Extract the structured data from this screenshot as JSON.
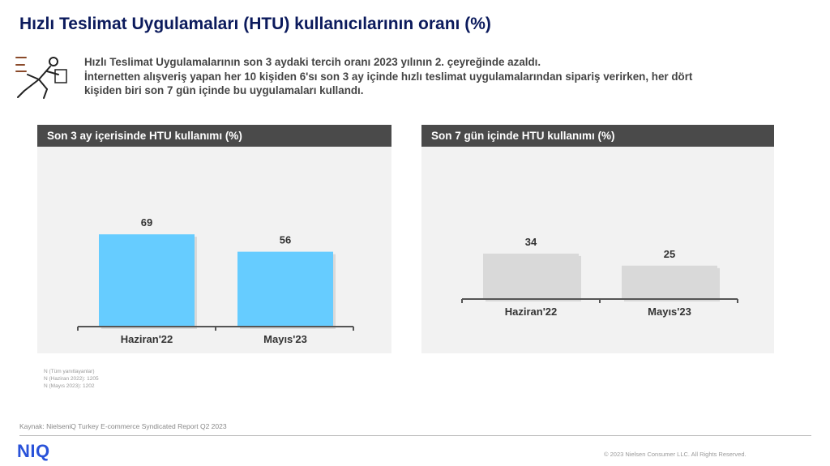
{
  "header": {
    "title": "Hızlı Teslimat Uygulamaları (HTU) kullanıcılarının oranı (%)"
  },
  "summary": {
    "lines": [
      "Hızlı Teslimat Uygulamalarının son 3 aydaki tercih oranı 2023 yılının 2. çeyreğinde azaldı.",
      "İnternetten alışveriş yapan her 10 kişiden 6'sı son 3 ay içinde hızlı teslimat uygulamalarından sipariş verirken, her dört",
      "kişiden biri son 7 gün içinde bu uygulamaları kullandı."
    ],
    "icon": "delivery-runner-icon"
  },
  "chart_data": [
    {
      "type": "bar",
      "title": "Son 3 ay içerisinde HTU kullanımı (%)",
      "categories": [
        "Haziran'22",
        "Mayıs'23"
      ],
      "values": [
        69,
        56
      ],
      "color": "#66ccff",
      "ylim": [
        0,
        100
      ],
      "xlabel": "",
      "ylabel": "",
      "grid": false,
      "legend": "none"
    },
    {
      "type": "bar",
      "title": "Son 7 gün içinde HTU kullanımı (%)",
      "categories": [
        "Haziran'22",
        "Mayıs'23"
      ],
      "values": [
        34,
        25
      ],
      "color": "#d9d9d9",
      "ylim": [
        0,
        100
      ],
      "xlabel": "",
      "ylabel": "",
      "grid": false,
      "legend": "none"
    }
  ],
  "notes": {
    "lines": [
      "N (Tüm yanıtlayanlar)",
      "N (Haziran 2022): 1205",
      "N  (Mayıs 2023): 1202"
    ]
  },
  "footer": {
    "source": "Kaynak: NielseniQ Turkey E-commerce Syndicated Report Q2 2023",
    "logo": "NIQ",
    "copyright": "© 2023 Nielsen Consumer LLC. All Rights Reserved."
  }
}
